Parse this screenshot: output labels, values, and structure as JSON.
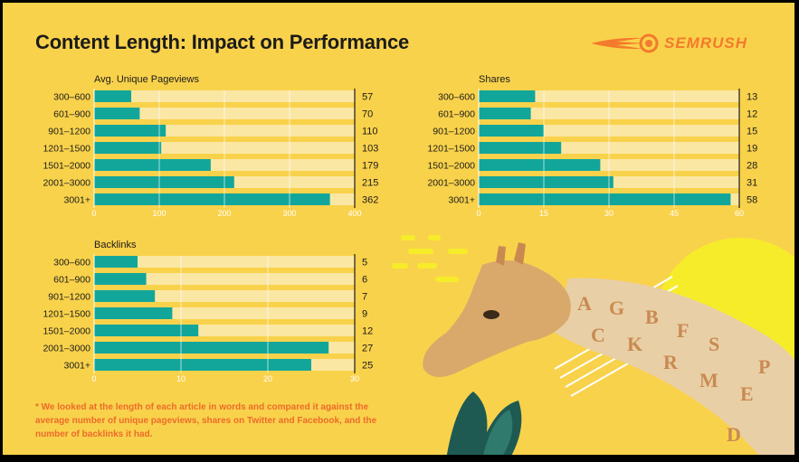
{
  "title": "Content Length: Impact on Performance",
  "brand": {
    "name": "SEMRUSH",
    "logo_color": "#f47a2c"
  },
  "colors": {
    "background": "#f9d24b",
    "bar": "#12a69b",
    "track": "#fbe7a4"
  },
  "footnote": "* We looked at the length of each article in words and compared it against the average number of unique pageviews, shares on Twitter and Facebook, and the number of backlinks it had.",
  "chart_data": [
    {
      "type": "bar",
      "orientation": "horizontal",
      "title": "Avg. Unique Pageviews",
      "categories": [
        "300–600",
        "601–900",
        "901–1200",
        "1201–1500",
        "1501–2000",
        "2001–3000",
        "3001+"
      ],
      "values": [
        57,
        70,
        110,
        103,
        179,
        215,
        362
      ],
      "xlim": [
        0,
        400
      ],
      "ticks": [
        0,
        100,
        200,
        300,
        400
      ],
      "grid": true
    },
    {
      "type": "bar",
      "orientation": "horizontal",
      "title": "Shares",
      "categories": [
        "300–600",
        "601–900",
        "901–1200",
        "1201–1500",
        "1501–2000",
        "2001–3000",
        "3001+"
      ],
      "values": [
        13,
        12,
        15,
        19,
        28,
        31,
        58
      ],
      "xlim": [
        0,
        60
      ],
      "ticks": [
        0,
        15,
        30,
        45,
        60
      ],
      "grid": true
    },
    {
      "type": "bar",
      "orientation": "horizontal",
      "title": "Backlinks",
      "categories": [
        "300–600",
        "601–900",
        "901–1200",
        "1201–1500",
        "1501–2000",
        "2001–3000",
        "3001+"
      ],
      "values": [
        5,
        6,
        7,
        9,
        12,
        27,
        25
      ],
      "xlim": [
        0,
        30
      ],
      "ticks": [
        0,
        10,
        20,
        30
      ],
      "grid": true
    }
  ]
}
